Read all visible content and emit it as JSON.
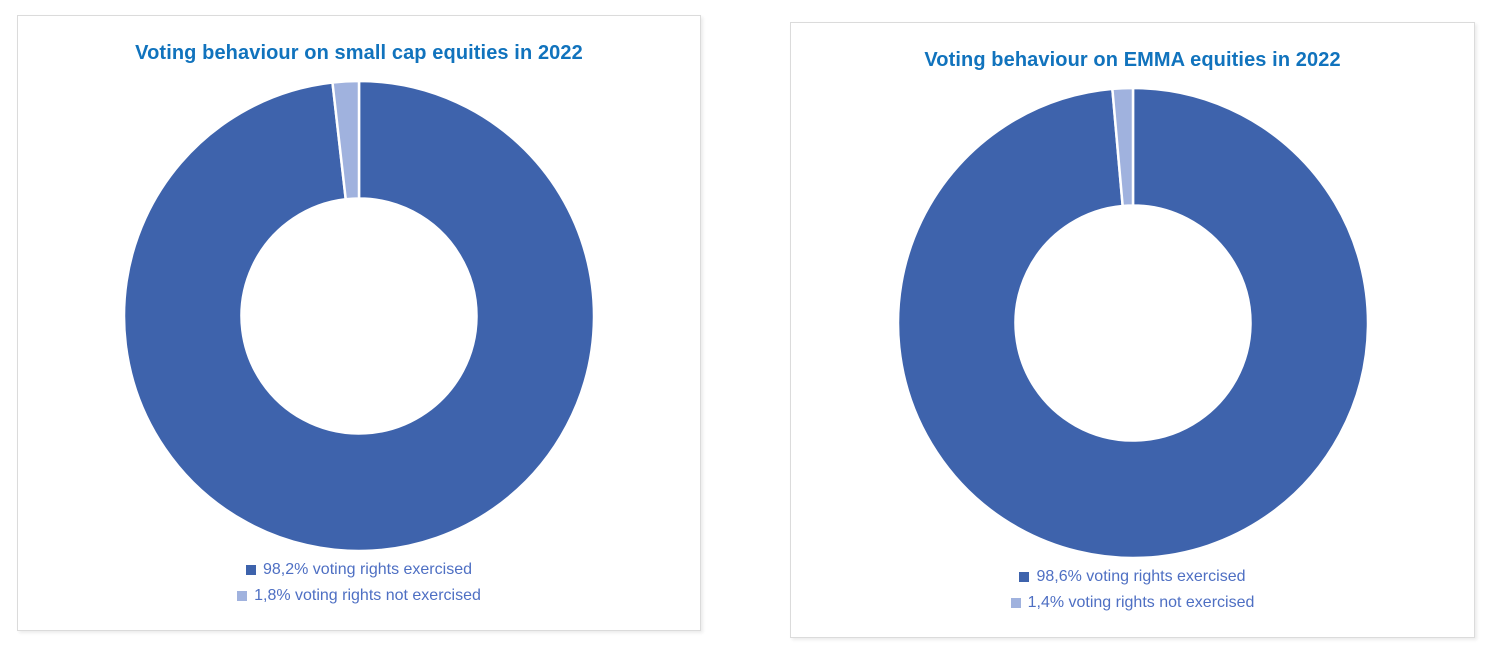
{
  "page": {
    "background": "#FFFFFF",
    "card_border_color": "#DBDBDB"
  },
  "chart_data": [
    {
      "type": "pie",
      "subtype": "donut",
      "title": "Voting behaviour on small cap equities in 2022",
      "title_color": "#1173BD",
      "legend_text_color": "#4E6FC3",
      "legend_position": "bottom",
      "hole_ratio": 0.5,
      "start_angle_deg": 0,
      "direction": "clockwise",
      "separator_color": "#FFFFFF",
      "slices": [
        {
          "label": "98,2% voting rights exercised",
          "value": 98.2,
          "color": "#3E63AC"
        },
        {
          "label": "1,8% voting rights not exercised",
          "value": 1.8,
          "color": "#A0B2DE"
        }
      ]
    },
    {
      "type": "pie",
      "subtype": "donut",
      "title": "Voting behaviour on EMMA equities in 2022",
      "title_color": "#1173BD",
      "legend_text_color": "#4E6FC3",
      "legend_position": "bottom",
      "hole_ratio": 0.5,
      "start_angle_deg": 0,
      "direction": "clockwise",
      "separator_color": "#FFFFFF",
      "slices": [
        {
          "label": "98,6% voting rights exercised",
          "value": 98.6,
          "color": "#3E63AC"
        },
        {
          "label": "1,4% voting rights not exercised",
          "value": 1.4,
          "color": "#A0B2DE"
        }
      ]
    }
  ]
}
